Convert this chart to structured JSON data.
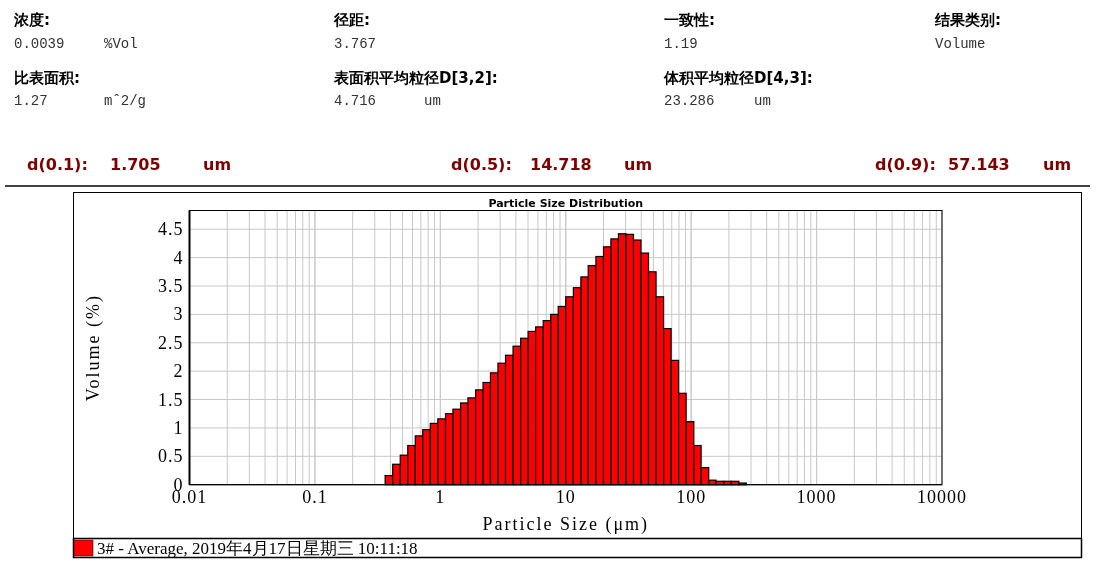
{
  "chart_data": {
    "type": "histogram",
    "title": "Particle Size Distribution",
    "xlabel": "Particle Size (μm)",
    "ylabel": "Volume (%)",
    "bins": [
      0.363,
      0.417,
      0.479,
      0.55,
      0.631,
      0.724,
      0.832,
      0.955,
      1.1,
      1.26,
      1.45,
      1.66,
      1.91,
      2.19,
      2.51,
      2.88,
      3.31,
      3.8,
      4.37,
      5.01,
      5.75,
      6.61,
      7.59,
      8.71,
      10,
      11.5,
      13.2,
      15.1,
      17.4,
      20.0,
      22.9,
      26.3,
      30.2,
      34.7,
      39.8,
      45.7,
      52.5,
      60.3,
      69.2,
      79.4,
      91.2,
      105,
      120,
      138,
      158,
      182,
      209,
      240,
      275
    ],
    "series": [
      {
        "name": "3# - Average, 2019年4月17日星期三 10:11:18",
        "color": "#ff0000",
        "values": [
          0.16,
          0.36,
          0.52,
          0.69,
          0.86,
          0.97,
          1.08,
          1.16,
          1.25,
          1.33,
          1.44,
          1.53,
          1.67,
          1.8,
          1.97,
          2.14,
          2.28,
          2.44,
          2.58,
          2.7,
          2.78,
          2.89,
          3.0,
          3.14,
          3.31,
          3.47,
          3.66,
          3.86,
          4.02,
          4.19,
          4.33,
          4.42,
          4.41,
          4.31,
          4.08,
          3.75,
          3.31,
          2.75,
          2.19,
          1.61,
          1.11,
          0.69,
          0.3,
          0.08,
          0.06,
          0.06,
          0.06,
          0.03
        ]
      }
    ],
    "xlim": [
      0.01,
      10000
    ],
    "ylim": [
      0,
      4.83
    ],
    "xticks": [
      0.01,
      0.1,
      1,
      10,
      100,
      1000,
      10000
    ],
    "yticks": [
      0,
      0.5,
      1,
      1.5,
      2,
      2.5,
      3,
      3.5,
      4,
      4.5
    ],
    "log": "x",
    "grid": true,
    "legend": "bottom",
    "annotations": [
      "浓度:",
      "0.0039",
      "%Vol",
      "径距:",
      "3.767",
      "一致性:",
      "1.19",
      "结果类别:",
      "Volume",
      "比表面积:",
      "1.27",
      "mˆ2/g",
      "表面积平均粒径D[3,2]:",
      "4.716",
      "um",
      "体积平均粒径D[4,3]:",
      "23.286",
      "um",
      "d(0.1):",
      "1.705",
      "um",
      "d(0.5):",
      "14.718",
      "um",
      "d(0.9):",
      "57.143",
      "um"
    ]
  }
}
